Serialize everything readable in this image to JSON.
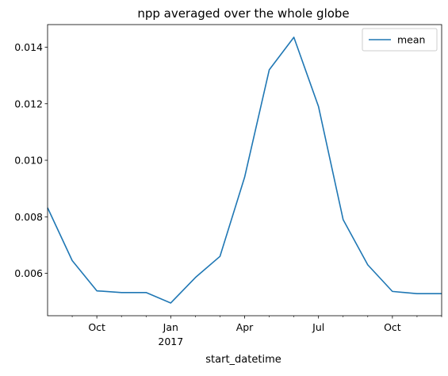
{
  "chart_data": {
    "type": "line",
    "title": "npp averaged over the whole globe",
    "xlabel": "start_datetime",
    "ylabel": "",
    "x": [
      "2016-08",
      "2016-09",
      "2016-10",
      "2016-11",
      "2016-12",
      "2017-01",
      "2017-02",
      "2017-03",
      "2017-04",
      "2017-05",
      "2017-06",
      "2017-07",
      "2017-08",
      "2017-09",
      "2017-10",
      "2017-11",
      "2017-12"
    ],
    "series": [
      {
        "name": "mean",
        "color": "#1f77b4",
        "values": [
          0.00832,
          0.00645,
          0.00538,
          0.00532,
          0.00532,
          0.00495,
          0.00585,
          0.0066,
          0.0094,
          0.0132,
          0.01435,
          0.0119,
          0.0079,
          0.0063,
          0.00536,
          0.00528,
          0.00528
        ]
      }
    ],
    "xlim": [
      "2016-08",
      "2017-12"
    ],
    "ylim": [
      0.0045,
      0.0148
    ],
    "yticks": [
      {
        "value": 0.006,
        "label": "0.006"
      },
      {
        "value": 0.008,
        "label": "0.008"
      },
      {
        "value": 0.01,
        "label": "0.010"
      },
      {
        "value": 0.012,
        "label": "0.012"
      },
      {
        "value": 0.014,
        "label": "0.014"
      }
    ],
    "xticks_major": [
      {
        "x": "2016-10",
        "label": "Oct",
        "sublabel": ""
      },
      {
        "x": "2017-01",
        "label": "Jan",
        "sublabel": "2017"
      },
      {
        "x": "2017-04",
        "label": "Apr",
        "sublabel": ""
      },
      {
        "x": "2017-07",
        "label": "Jul",
        "sublabel": ""
      },
      {
        "x": "2017-10",
        "label": "Oct",
        "sublabel": ""
      }
    ],
    "xticks_minor": [
      "2016-09",
      "2016-11",
      "2016-12",
      "2017-02",
      "2017-03",
      "2017-05",
      "2017-06",
      "2017-08",
      "2017-09",
      "2017-11",
      "2017-12"
    ],
    "grid": false,
    "legend_position": "top-right"
  }
}
